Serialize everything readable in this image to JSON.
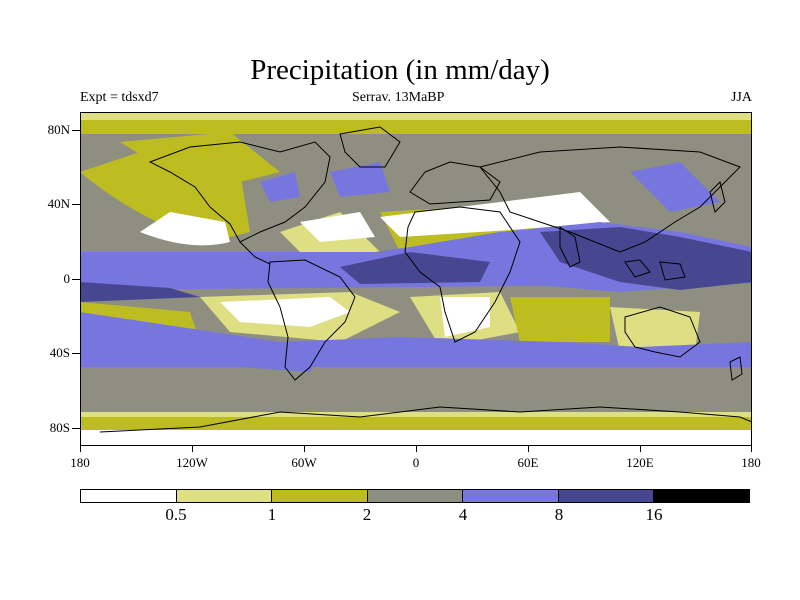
{
  "title": "Precipitation (in mm/day)",
  "subtitle_left": "Expt = tdsxd7",
  "subtitle_center": "Serrav.   13MaBP",
  "subtitle_right": "JJA",
  "lat_labels": [
    "80N",
    "40N",
    "0",
    "40S",
    "80S"
  ],
  "lon_labels": [
    "180",
    "120W",
    "60W",
    "0",
    "60E",
    "120E",
    "180"
  ],
  "colorbar": {
    "colors": [
      "#ffffff",
      "#dede82",
      "#bdbd22",
      "#8f8f81",
      "#7676de",
      "#474791",
      "#000000"
    ],
    "labels": [
      "0.5",
      "1",
      "2",
      "4",
      "8",
      "16"
    ]
  }
}
